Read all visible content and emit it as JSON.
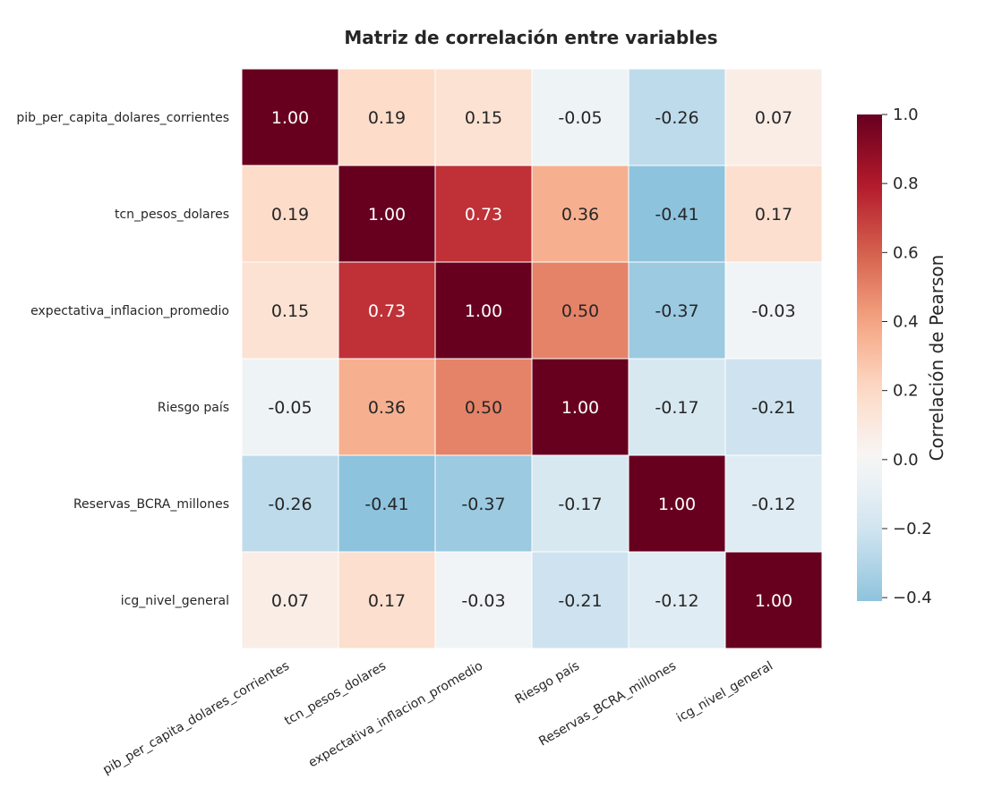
{
  "chart_data": {
    "type": "heatmap",
    "title": "Matriz de correlación entre variables",
    "rows": [
      "pib_per_capita_dolares_corrientes",
      "tcn_pesos_dolares",
      "expectativa_inflacion_promedio",
      "Riesgo país",
      "Reservas_BCRA_millones",
      "icg_nivel_general"
    ],
    "columns": [
      "pib_per_capita_dolares_corrientes",
      "tcn_pesos_dolares",
      "expectativa_inflacion_promedio",
      "Riesgo país",
      "Reservas_BCRA_millones",
      "icg_nivel_general"
    ],
    "values": [
      [
        1.0,
        0.19,
        0.15,
        -0.05,
        -0.26,
        0.07
      ],
      [
        0.19,
        1.0,
        0.73,
        0.36,
        -0.41,
        0.17
      ],
      [
        0.15,
        0.73,
        1.0,
        0.5,
        -0.37,
        -0.03
      ],
      [
        -0.05,
        0.36,
        0.5,
        1.0,
        -0.17,
        -0.21
      ],
      [
        -0.26,
        -0.41,
        -0.37,
        -0.17,
        1.0,
        -0.12
      ],
      [
        0.07,
        0.17,
        -0.03,
        -0.21,
        -0.12,
        1.0
      ]
    ],
    "colorbar": {
      "label": "Correlación de Pearson",
      "ticks": [
        "1.0",
        "0.8",
        "0.6",
        "0.4",
        "0.2",
        "0.0",
        "−0.2",
        "−0.4"
      ],
      "range": [
        -0.41,
        1.0
      ],
      "colormap": "RdBu_r",
      "center": 0
    }
  }
}
